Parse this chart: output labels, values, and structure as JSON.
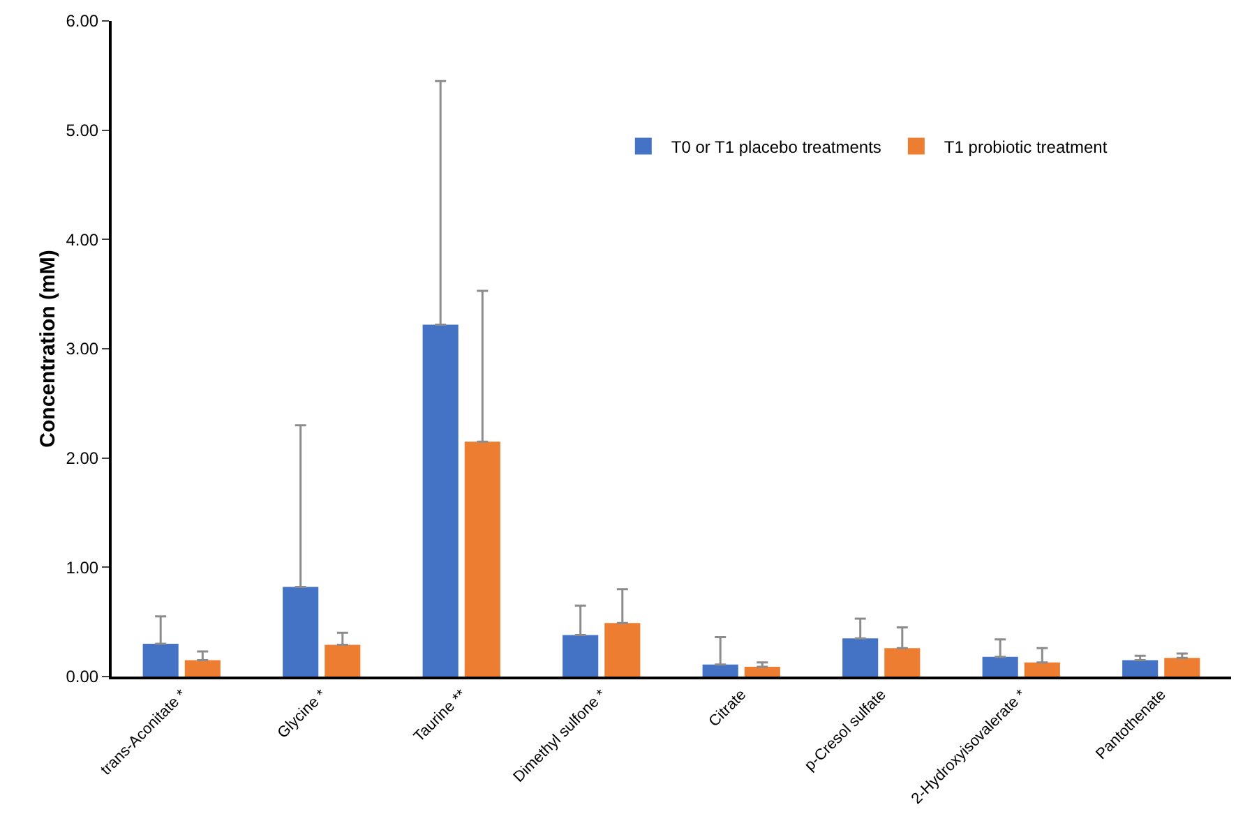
{
  "chart_data": {
    "type": "bar",
    "ylabel": "Concentration (mM)",
    "categories": [
      "trans-Aconitate *",
      "Glycine *",
      "Taurine **",
      "Dimethyl sulfone *",
      "Citrate",
      "p-Cresol sulfate",
      "2-Hydroxyisovalerate *",
      "Pantothenate"
    ],
    "series": [
      {
        "name": "T0 or T1 placebo treatments",
        "color": "#4472c4",
        "values": [
          0.3,
          0.82,
          3.22,
          0.38,
          0.11,
          0.35,
          0.18,
          0.15
        ],
        "errors": [
          [
            0.3,
            0.55
          ],
          [
            0.82,
            2.3
          ],
          [
            3.22,
            5.45
          ],
          [
            0.38,
            0.65
          ],
          [
            0.11,
            0.36
          ],
          [
            0.35,
            0.53
          ],
          [
            0.18,
            0.34
          ],
          [
            0.15,
            0.19
          ]
        ]
      },
      {
        "name": "T1 probiotic treatment",
        "color": "#ed7d31",
        "values": [
          0.15,
          0.29,
          2.15,
          0.49,
          0.09,
          0.26,
          0.13,
          0.17
        ],
        "errors": [
          [
            0.15,
            0.23
          ],
          [
            0.29,
            0.4
          ],
          [
            2.15,
            3.53
          ],
          [
            0.49,
            0.8
          ],
          [
            0.09,
            0.13
          ],
          [
            0.26,
            0.45
          ],
          [
            0.13,
            0.26
          ],
          [
            0.17,
            0.21
          ]
        ]
      }
    ],
    "ylim": [
      0,
      6
    ],
    "yticks": [
      {
        "value": 0,
        "label": "0.00"
      },
      {
        "value": 1,
        "label": "1.00"
      },
      {
        "value": 2,
        "label": "2.00"
      },
      {
        "value": 3,
        "label": "3.00"
      },
      {
        "value": 4,
        "label": "4.00"
      },
      {
        "value": 5,
        "label": "5.00"
      },
      {
        "value": 6,
        "label": "6.00"
      }
    ],
    "grid": false,
    "legend": "top right"
  }
}
